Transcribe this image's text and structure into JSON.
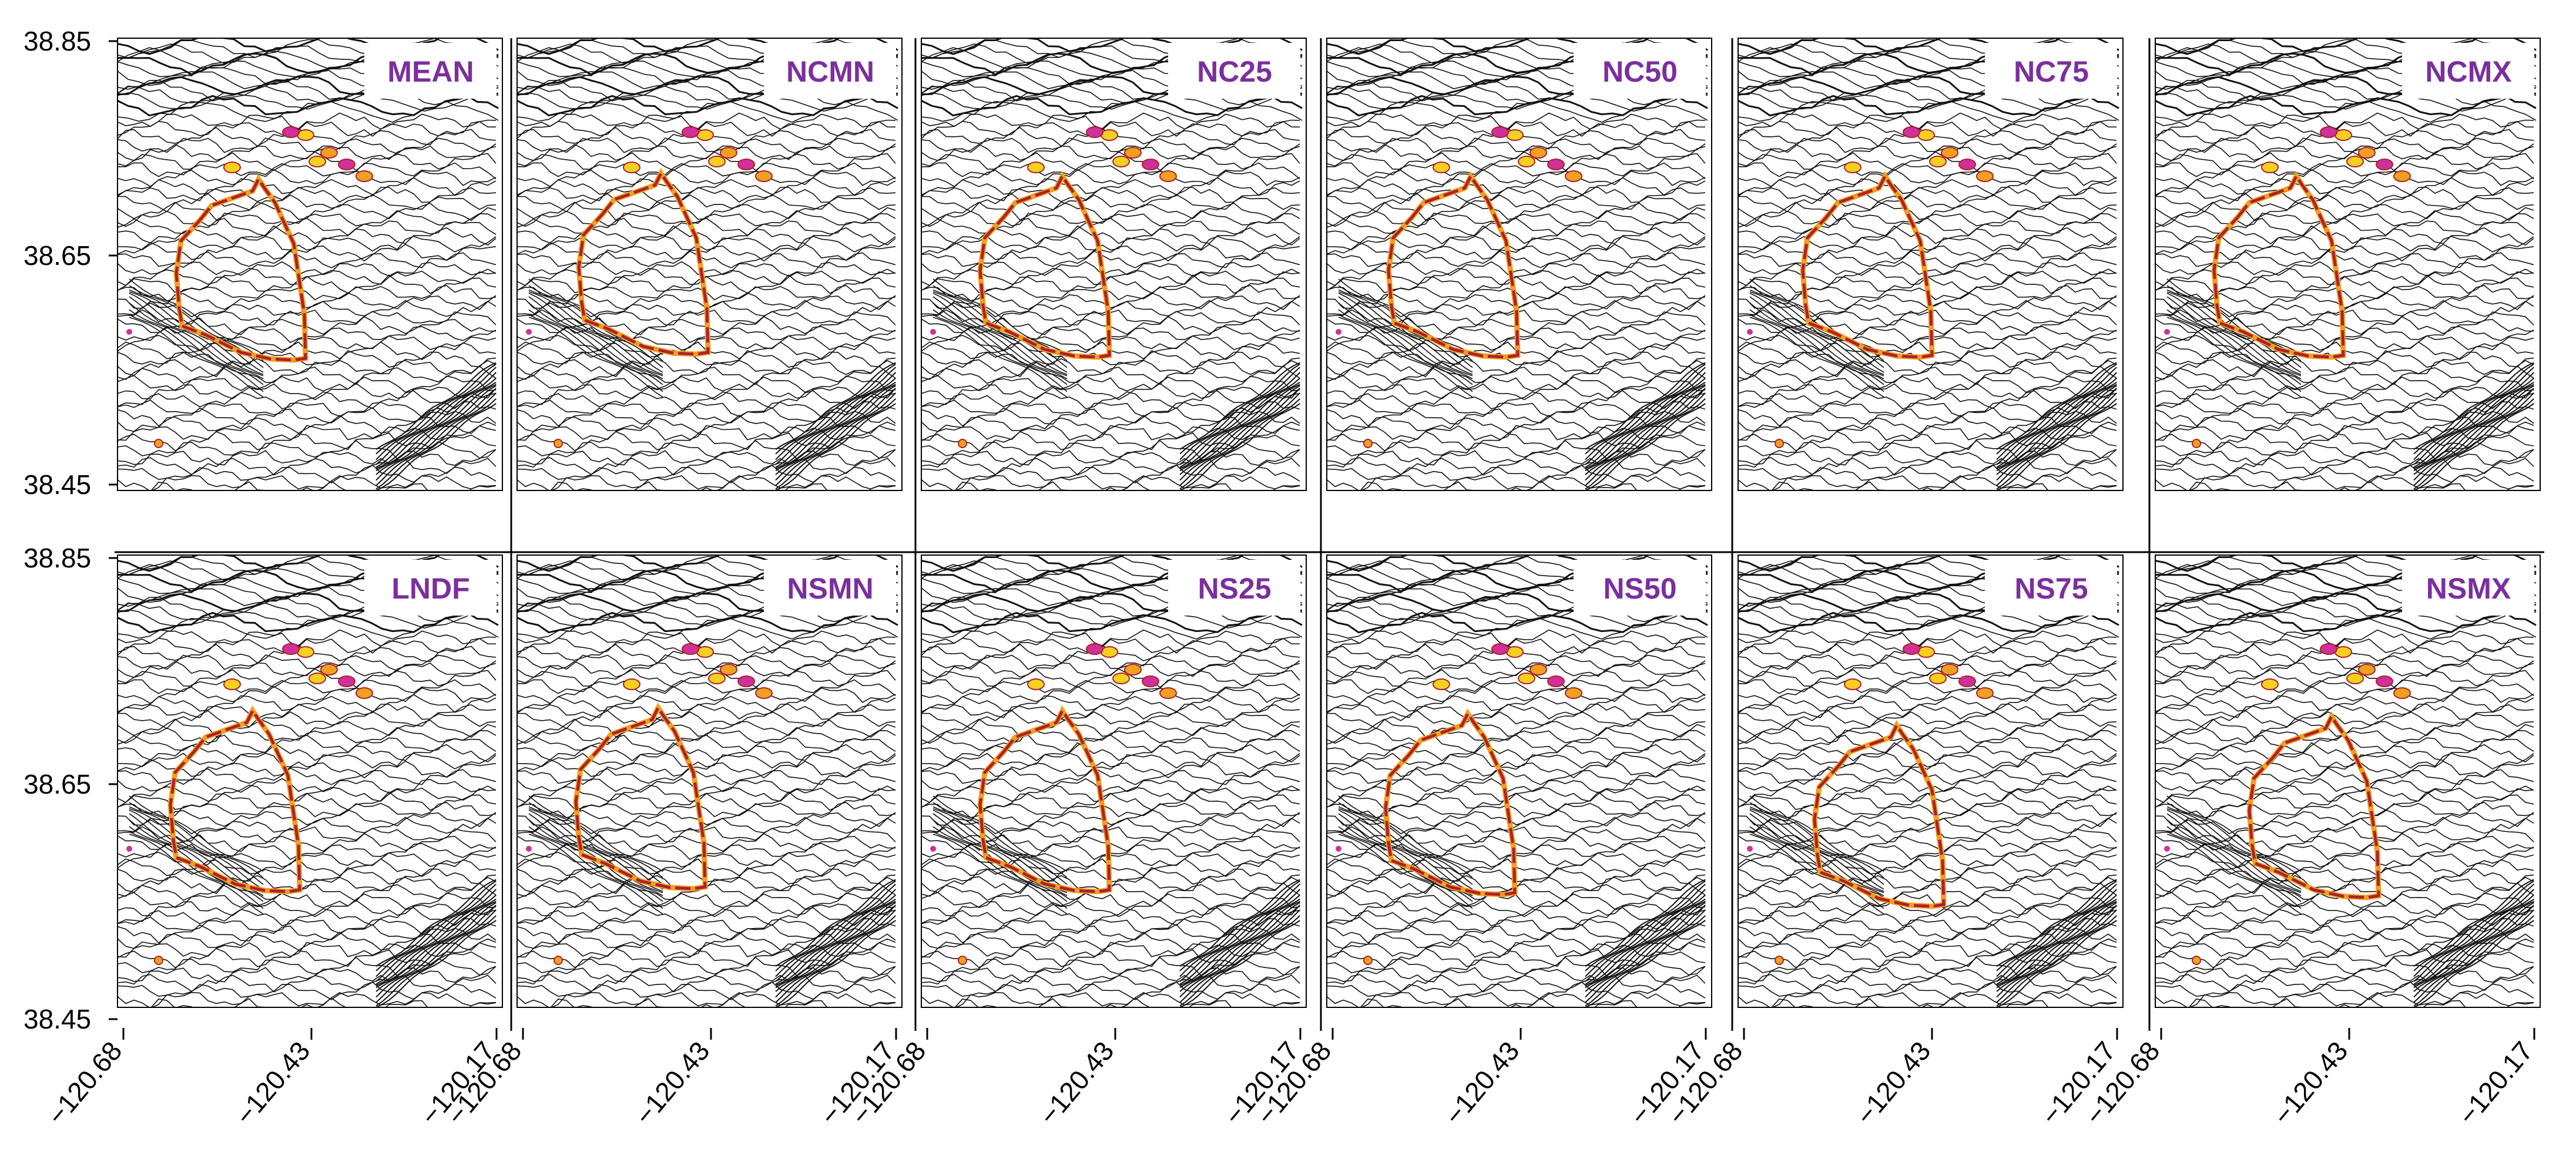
{
  "panels": [
    {
      "label": "MEAN"
    },
    {
      "label": "NCMN"
    },
    {
      "label": "NC25"
    },
    {
      "label": "NC50"
    },
    {
      "label": "NC75"
    },
    {
      "label": "NCMX"
    },
    {
      "label": "LNDF"
    },
    {
      "label": "NSMN"
    },
    {
      "label": "NS25"
    },
    {
      "label": "NS50"
    },
    {
      "label": "NS75"
    },
    {
      "label": "NSMX"
    }
  ],
  "axes": {
    "y_ticks": [
      "38.85",
      "38.65",
      "38.45"
    ],
    "x_ticks": [
      "−120.68",
      "−120.43",
      "−120.17"
    ]
  },
  "colors": {
    "contour": "#111111",
    "panel_label": "#7b2f9e",
    "perimeter_red": "#b0202a",
    "perimeter_orange": "#f0a020",
    "perimeter_yellow": "#f5d020",
    "perimeter_magenta": "#d0309a"
  }
}
